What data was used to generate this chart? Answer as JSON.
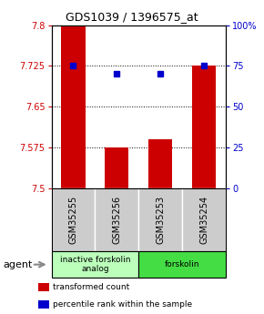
{
  "title": "GDS1039 / 1396575_at",
  "samples": [
    "GSM35255",
    "GSM35256",
    "GSM35253",
    "GSM35254"
  ],
  "bar_values": [
    7.8,
    7.575,
    7.59,
    7.725
  ],
  "bar_baseline": 7.5,
  "bar_color": "#cc0000",
  "percentile_values": [
    75,
    70,
    70,
    75
  ],
  "percentile_color": "#0000cc",
  "ylim_left": [
    7.5,
    7.8
  ],
  "ylim_right": [
    0,
    100
  ],
  "yticks_left": [
    7.5,
    7.575,
    7.65,
    7.725,
    7.8
  ],
  "yticks_right": [
    0,
    25,
    50,
    75,
    100
  ],
  "ytick_labels_left": [
    "7.5",
    "7.575",
    "7.65",
    "7.725",
    "7.8"
  ],
  "ytick_labels_right": [
    "0",
    "25",
    "50",
    "75",
    "100%"
  ],
  "left_tick_color": "#cc0000",
  "right_tick_color": "#0000cc",
  "groups": [
    {
      "label": "inactive forskolin\nanalog",
      "samples": [
        0,
        1
      ],
      "color": "#bbffbb"
    },
    {
      "label": "forskolin",
      "samples": [
        2,
        3
      ],
      "color": "#44dd44"
    }
  ],
  "agent_label": "agent",
  "legend_items": [
    {
      "color": "#cc0000",
      "label": "transformed count"
    },
    {
      "color": "#0000cc",
      "label": "percentile rank within the sample"
    }
  ],
  "background_color": "#ffffff",
  "bar_width": 0.55,
  "sample_box_color": "#cccccc"
}
